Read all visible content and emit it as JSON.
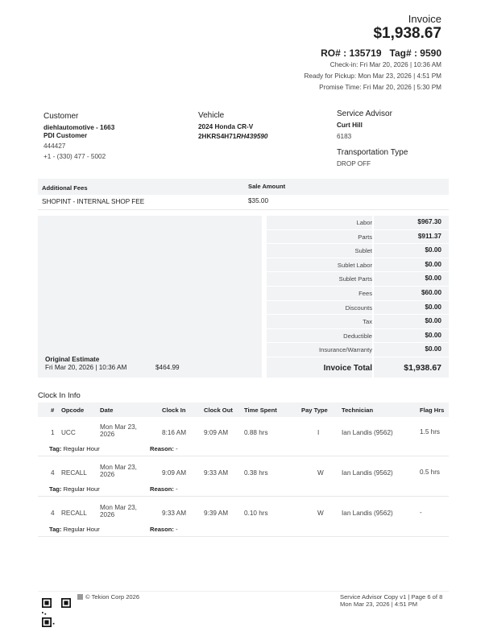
{
  "header": {
    "title": "Invoice",
    "total": "$1,938.67",
    "ro": "RO# : 135719",
    "tag": "Tag# : 9590",
    "checkin": "Check-in: Fri Mar 20, 2026 | 10:36 AM",
    "ready": "Ready for Pickup: Mon Mar 23, 2026 | 4:51 PM",
    "promise": "Promise Time: Fri Mar 20, 2026 | 5:30 PM"
  },
  "customer": {
    "heading": "Customer",
    "name": "diehlautomotive - 1663",
    "type": "PDI Customer",
    "number": "444427",
    "phone": "+1 - (330) 477 - 5002"
  },
  "vehicle": {
    "heading": "Vehicle",
    "model": "2024 Honda CR-V",
    "vin_prefix": "2HKRS4H71",
    "vin_suffix": "RH439590"
  },
  "advisor": {
    "heading": "Service Advisor",
    "name": "Curt Hill",
    "id": "6183",
    "transport_heading": "Transportation Type",
    "transport": "DROP OFF"
  },
  "fees": {
    "col1": "Additional Fees",
    "col2": "Sale Amount",
    "rows": [
      {
        "name": "SHOPINT - INTERNAL SHOP FEE",
        "amount": "$35.00"
      }
    ]
  },
  "estimate": {
    "label": "Original Estimate",
    "date": "Fri Mar 20, 2026 | 10:36 AM",
    "amount": "$464.99"
  },
  "totals": [
    {
      "label": "Labor",
      "value": "$967.30"
    },
    {
      "label": "Parts",
      "value": "$911.37"
    },
    {
      "label": "Sublet",
      "value": "$0.00"
    },
    {
      "label": "Sublet Labor",
      "value": "$0.00"
    },
    {
      "label": "Sublet Parts",
      "value": "$0.00"
    },
    {
      "label": "Fees",
      "value": "$60.00"
    },
    {
      "label": "Discounts",
      "value": "$0.00"
    },
    {
      "label": "Tax",
      "value": "$0.00"
    },
    {
      "label": "Deductible",
      "value": "$0.00"
    },
    {
      "label": "Insurance/Warranty",
      "value": "$0.00"
    }
  ],
  "invoice_total": {
    "label": "Invoice Total",
    "value": "$1,938.67"
  },
  "clock": {
    "title": "Clock In Info",
    "headers": [
      "#",
      "Opcode",
      "Date",
      "Clock In",
      "Clock Out",
      "Time Spent",
      "Pay Type",
      "Technician",
      "Flag Hrs"
    ],
    "tag_label": "Tag:",
    "reason_label": "Reason:",
    "rows": [
      {
        "num": "1",
        "opcode": "UCC",
        "date1": "Mon Mar 23,",
        "date2": "2026",
        "in": "8:16 AM",
        "out": "9:09 AM",
        "spent": "0.88 hrs",
        "pay": "I",
        "tech": "Ian Landis (9562)",
        "flag": "1.5 hrs",
        "tag": "Regular Hour",
        "reason": "-"
      },
      {
        "num": "4",
        "opcode": "RECALL",
        "date1": "Mon Mar 23,",
        "date2": "2026",
        "in": "9:09 AM",
        "out": "9:33 AM",
        "spent": "0.38 hrs",
        "pay": "W",
        "tech": "Ian Landis (9562)",
        "flag": "0.5 hrs",
        "tag": "Regular Hour",
        "reason": "-"
      },
      {
        "num": "4",
        "opcode": "RECALL",
        "date1": "Mon Mar 23,",
        "date2": "2026",
        "in": "9:33 AM",
        "out": "9:39 AM",
        "spent": "0.10 hrs",
        "pay": "W",
        "tech": "Ian Landis (9562)",
        "flag": "-",
        "tag": "Regular Hour",
        "reason": "-"
      }
    ]
  },
  "footer": {
    "copyright": "© Tekion Corp 2026",
    "copy": "Service Advisor Copy v1 | Page 6 of 8",
    "printed": "Mon Mar 23, 2026 | 4:51 PM"
  }
}
